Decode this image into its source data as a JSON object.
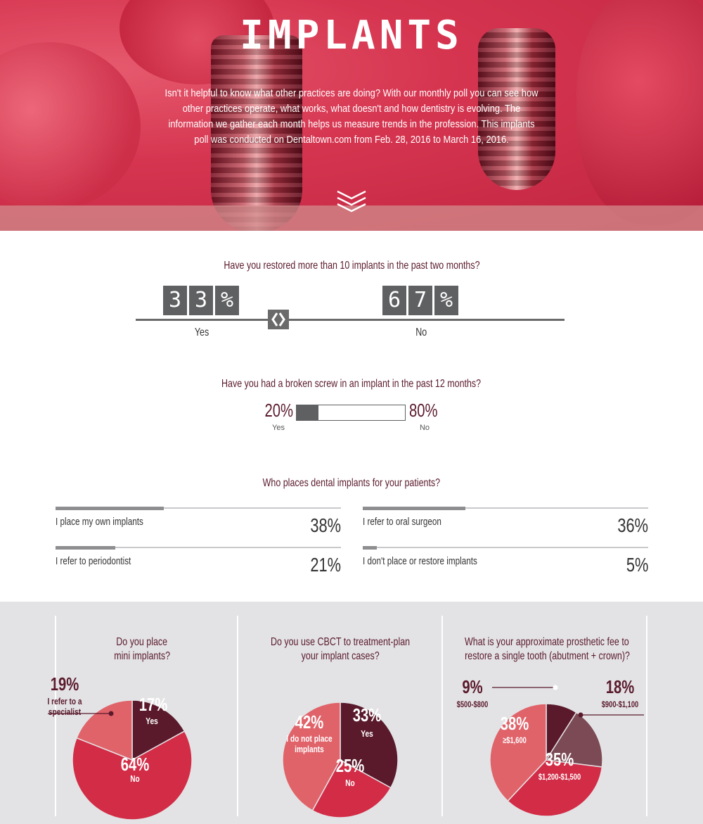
{
  "hero": {
    "title": "IMPLANTS",
    "intro": "Isn't it helpful to know what other practices are doing? With our monthly poll you can see how other practices operate, what works, what doesn't and how dentistry is evolving. The information we gather each month helps us measure trends in the profession. This implants poll was conducted on Dentaltown.com from Feb. 28, 2016 to March 16, 2016."
  },
  "q1": {
    "question": "Have you restored more than 10 implants in the past two months?",
    "yes_digits": [
      "3",
      "3",
      "%"
    ],
    "no_digits": [
      "6",
      "7",
      "%"
    ],
    "yes_label": "Yes",
    "no_label": "No"
  },
  "q2": {
    "question": "Have you had a broken screw in an implant in the past 12 months?",
    "yes_pct": "20%",
    "no_pct": "80%",
    "yes_label": "Yes",
    "no_label": "No"
  },
  "q3": {
    "question": "Who places dental implants for your patients?",
    "items": [
      {
        "label": "I place my own implants",
        "pct": "38%"
      },
      {
        "label": "I refer to oral surgeon",
        "pct": "36%"
      },
      {
        "label": "I refer to periodontist",
        "pct": "21%"
      },
      {
        "label": "I don't place or restore implants",
        "pct": "5%"
      }
    ]
  },
  "pies": {
    "mini": {
      "title_line1": "Do you place",
      "title_line2": "mini implants?"
    },
    "cbct": {
      "title_line1": "Do you use CBCT to treatment-plan",
      "title_line2": "your implant cases?"
    },
    "fee": {
      "title_line1": "What is your approximate prosthetic fee to",
      "title_line2": "restore a single tooth (abutment + crown)?"
    }
  },
  "colors": {
    "maroon": "#5a1a2c",
    "red": "#d22c46",
    "salmon": "#e0636a",
    "mauve": "#7b4a55",
    "gray": "#5f6062"
  },
  "chart_data": [
    {
      "type": "bar",
      "title": "Have you restored more than 10 implants in the past two months?",
      "categories": [
        "Yes",
        "No"
      ],
      "values": [
        33,
        67
      ]
    },
    {
      "type": "bar",
      "title": "Have you had a broken screw in an implant in the past 12 months?",
      "categories": [
        "Yes",
        "No"
      ],
      "values": [
        20,
        80
      ]
    },
    {
      "type": "bar",
      "title": "Who places dental implants for your patients?",
      "categories": [
        "I place my own implants",
        "I refer to oral surgeon",
        "I refer to periodontist",
        "I don't place or restore implants"
      ],
      "values": [
        38,
        36,
        21,
        5
      ]
    },
    {
      "type": "pie",
      "title": "Do you place mini implants?",
      "slices": [
        {
          "label": "Yes",
          "pct": 17,
          "color": "#5a1a2c"
        },
        {
          "label": "No",
          "pct": 64,
          "color": "#d22c46"
        },
        {
          "label": "I refer to a specialist",
          "pct": 19,
          "color": "#e0636a"
        }
      ]
    },
    {
      "type": "pie",
      "title": "Do you use CBCT to treatment-plan your implant cases?",
      "slices": [
        {
          "label": "Yes",
          "pct": 33,
          "color": "#5a1a2c"
        },
        {
          "label": "No",
          "pct": 25,
          "color": "#d22c46"
        },
        {
          "label": "I do not place implants",
          "pct": 42,
          "color": "#e0636a"
        }
      ]
    },
    {
      "type": "pie",
      "title": "What is your approximate prosthetic fee to restore a single tooth (abutment + crown)?",
      "slices": [
        {
          "label": "$500-$800",
          "pct": 9,
          "color": "#5a1a2c"
        },
        {
          "label": "$900-$1,100",
          "pct": 18,
          "color": "#7b4a55"
        },
        {
          "label": "$1,200-$1,500",
          "pct": 35,
          "color": "#d22c46"
        },
        {
          "label": "≥$1,600",
          "pct": 38,
          "color": "#e0636a"
        }
      ]
    }
  ]
}
